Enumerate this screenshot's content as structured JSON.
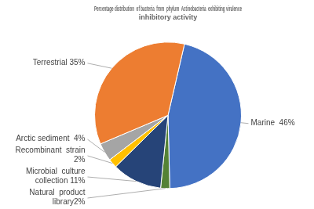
{
  "chart_data": {
    "type": "pie",
    "title": [
      "Percentage distribution  of bacteria  from  phylum  Actinobacteria  exhibiting virulence",
      "inhibitory activity"
    ],
    "categories": [
      "Marine  46%",
      "Natural  product\nlibrary2%",
      "Microbial  culture\ncollection 11%",
      "Recombinant  strain\n2%",
      "Arctic sediment  4%",
      "Terrestrial 35%"
    ],
    "values": [
      46,
      2,
      11,
      2,
      4,
      35
    ],
    "colors": [
      "#4472C4",
      "#548235",
      "#264478",
      "#FFC000",
      "#A5A5A5",
      "#ED7D31"
    ]
  }
}
